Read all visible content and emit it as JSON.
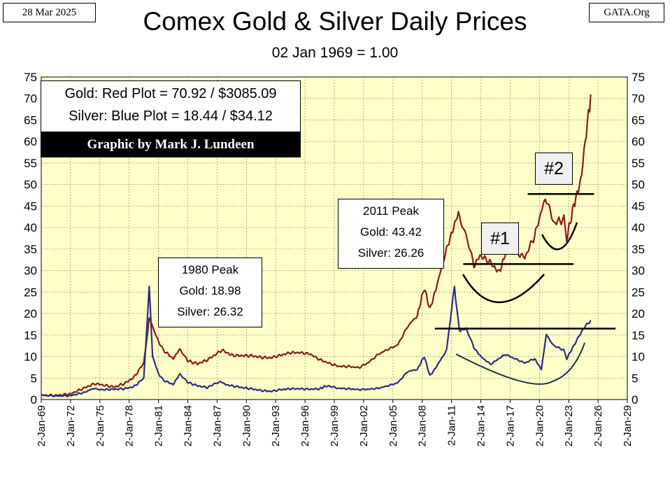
{
  "header": {
    "date": "28 Mar 2025",
    "source": "GATA.Org",
    "title": "Comex Gold & Silver Daily Prices",
    "subtitle": "02 Jan 1969 = 1.00"
  },
  "legend": {
    "gold_line": "Gold: Red Plot =  70.92 / $3085.09",
    "silver_line": "Silver: Blue Plot = 18.44 / $34.12",
    "credit": "Graphic by Mark J. Lundeen"
  },
  "annotations": {
    "peak_1980": {
      "title": "1980 Peak",
      "gold": "Gold:  18.98",
      "silver": "Silver: 26.32"
    },
    "peak_2011": {
      "title": "2011 Peak",
      "gold": "Gold:  43.42",
      "silver": "Silver: 26.26"
    },
    "label_1": "#1",
    "label_2": "#2"
  },
  "colors": {
    "gold": "#8b1a1a",
    "silver": "#2b2b8a",
    "plot_bg": "#ffffc8",
    "grid": "#808080",
    "annotation": "#000000"
  },
  "chart_data": {
    "type": "line",
    "title": "Comex Gold & Silver Daily Prices",
    "subtitle": "02 Jan 1969 = 1.00",
    "xlabel": "",
    "ylabel": "",
    "x_ticks": [
      "2-Jan-69",
      "2-Jan-72",
      "2-Jan-75",
      "2-Jan-78",
      "2-Jan-81",
      "2-Jan-84",
      "2-Jan-87",
      "2-Jan-90",
      "2-Jan-93",
      "2-Jan-96",
      "2-Jan-99",
      "2-Jan-02",
      "2-Jan-05",
      "2-Jan-08",
      "2-Jan-11",
      "2-Jan-14",
      "2-Jan-17",
      "2-Jan-20",
      "2-Jan-23",
      "2-Jan-26",
      "2-Jan-29"
    ],
    "xlim": [
      1969,
      2029
    ],
    "ylim": [
      0,
      75
    ],
    "y_ticks": [
      0,
      5,
      10,
      15,
      20,
      25,
      30,
      35,
      40,
      45,
      50,
      55,
      60,
      65,
      70,
      75
    ],
    "grid": true,
    "legend_position": "top-left",
    "series": [
      {
        "name": "Gold",
        "color": "#8b1a1a",
        "points": [
          [
            1969,
            1.0
          ],
          [
            1970.5,
            0.95
          ],
          [
            1972,
            1.3
          ],
          [
            1973.5,
            2.8
          ],
          [
            1974.5,
            3.7
          ],
          [
            1975.5,
            3.3
          ],
          [
            1976.5,
            2.9
          ],
          [
            1977.5,
            3.7
          ],
          [
            1978.5,
            5.2
          ],
          [
            1979.5,
            8.5
          ],
          [
            1980.05,
            18.98
          ],
          [
            1980.6,
            16.0
          ],
          [
            1981,
            13.5
          ],
          [
            1981.5,
            11.5
          ],
          [
            1982.5,
            9.5
          ],
          [
            1983.2,
            11.8
          ],
          [
            1984,
            9.0
          ],
          [
            1985,
            8.3
          ],
          [
            1986,
            9.2
          ],
          [
            1987.5,
            11.5
          ],
          [
            1988.5,
            10.3
          ],
          [
            1989.5,
            10.2
          ],
          [
            1990.5,
            10.2
          ],
          [
            1991.5,
            9.8
          ],
          [
            1992.5,
            9.7
          ],
          [
            1993.5,
            10.3
          ],
          [
            1994.5,
            10.9
          ],
          [
            1995.5,
            10.9
          ],
          [
            1996.5,
            10.6
          ],
          [
            1997.5,
            9.3
          ],
          [
            1998.5,
            8.4
          ],
          [
            1999.5,
            7.7
          ],
          [
            2000.5,
            7.7
          ],
          [
            2001.5,
            7.4
          ],
          [
            2002.5,
            8.6
          ],
          [
            2003.5,
            10.5
          ],
          [
            2004.5,
            11.7
          ],
          [
            2005.5,
            12.7
          ],
          [
            2006.5,
            17.0
          ],
          [
            2007.5,
            19.5
          ],
          [
            2008.2,
            26.0
          ],
          [
            2008.8,
            21.0
          ],
          [
            2009.5,
            26.5
          ],
          [
            2010.5,
            35.0
          ],
          [
            2011.7,
            43.42
          ],
          [
            2012.5,
            38.0
          ],
          [
            2013.3,
            31.0
          ],
          [
            2013.9,
            33.5
          ],
          [
            2014.9,
            32.0
          ],
          [
            2015.9,
            29.5
          ],
          [
            2016.6,
            34.5
          ],
          [
            2017.5,
            34.5
          ],
          [
            2018.5,
            33.0
          ],
          [
            2019.5,
            38.0
          ],
          [
            2020.6,
            47.0
          ],
          [
            2021.5,
            41.0
          ],
          [
            2022.5,
            42.0
          ],
          [
            2022.8,
            37.5
          ],
          [
            2023.5,
            45.0
          ],
          [
            2024.2,
            50.5
          ],
          [
            2024.8,
            62.0
          ],
          [
            2025.25,
            70.92
          ]
        ]
      },
      {
        "name": "Silver",
        "color": "#2b2b8a",
        "points": [
          [
            1969,
            1.0
          ],
          [
            1970.5,
            0.8
          ],
          [
            1972,
            0.9
          ],
          [
            1973.5,
            1.7
          ],
          [
            1974.2,
            2.5
          ],
          [
            1975.5,
            2.3
          ],
          [
            1976.5,
            2.4
          ],
          [
            1977.5,
            2.5
          ],
          [
            1978.5,
            3.0
          ],
          [
            1979.5,
            5.0
          ],
          [
            1980.05,
            26.32
          ],
          [
            1980.4,
            10.0
          ],
          [
            1981,
            6.0
          ],
          [
            1981.5,
            4.5
          ],
          [
            1982.5,
            3.5
          ],
          [
            1983.2,
            6.0
          ],
          [
            1984,
            4.0
          ],
          [
            1985,
            3.2
          ],
          [
            1986,
            2.8
          ],
          [
            1987.3,
            4.2
          ],
          [
            1988,
            3.4
          ],
          [
            1989.5,
            2.8
          ],
          [
            1990.5,
            2.5
          ],
          [
            1991.5,
            2.1
          ],
          [
            1992.5,
            1.9
          ],
          [
            1993.5,
            2.3
          ],
          [
            1994.5,
            2.5
          ],
          [
            1995.5,
            2.5
          ],
          [
            1996.5,
            2.4
          ],
          [
            1997.5,
            2.5
          ],
          [
            1998.2,
            3.2
          ],
          [
            1999.5,
            2.6
          ],
          [
            2000.5,
            2.5
          ],
          [
            2001.5,
            2.3
          ],
          [
            2002.5,
            2.4
          ],
          [
            2003.5,
            2.6
          ],
          [
            2004.5,
            3.2
          ],
          [
            2005.5,
            3.9
          ],
          [
            2006.5,
            6.5
          ],
          [
            2007.5,
            7.0
          ],
          [
            2008.2,
            10.0
          ],
          [
            2008.8,
            5.5
          ],
          [
            2009.5,
            7.8
          ],
          [
            2010.5,
            11.5
          ],
          [
            2011.3,
            26.26
          ],
          [
            2011.8,
            16.0
          ],
          [
            2012.5,
            16.5
          ],
          [
            2013.3,
            12.0
          ],
          [
            2014,
            10.0
          ],
          [
            2015,
            8.2
          ],
          [
            2016.5,
            10.5
          ],
          [
            2017.5,
            9.5
          ],
          [
            2018.5,
            8.5
          ],
          [
            2019.5,
            9.5
          ],
          [
            2020.2,
            7.0
          ],
          [
            2020.7,
            15.0
          ],
          [
            2021.5,
            12.5
          ],
          [
            2022.5,
            11.5
          ],
          [
            2022.8,
            9.5
          ],
          [
            2023.5,
            12.5
          ],
          [
            2024.5,
            16.5
          ],
          [
            2025.25,
            18.44
          ]
        ]
      }
    ],
    "annotation_lines": [
      {
        "x": [
          2009.3,
          2027.8
        ],
        "y": [
          16.5,
          16.5
        ]
      },
      {
        "x": [
          2012.2,
          2023.5
        ],
        "y": [
          31.5,
          31.5
        ]
      },
      {
        "x": [
          2018.8,
          2025.6
        ],
        "y": [
          47.8,
          47.8
        ]
      }
    ]
  }
}
